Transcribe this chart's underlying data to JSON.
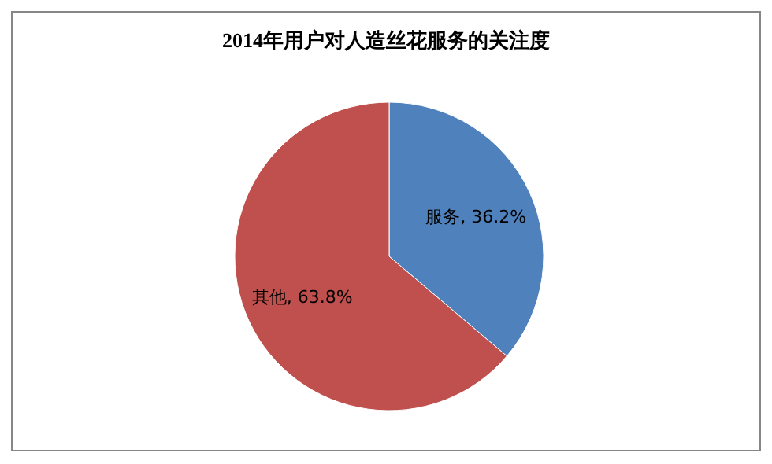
{
  "chart_data": {
    "type": "pie",
    "title": "2014年用户对人造丝花服务的关注度",
    "categories": [
      "服务",
      "其他"
    ],
    "values": [
      36.2,
      63.8
    ],
    "colors": [
      "#4f81bd",
      "#c0504d"
    ],
    "value_labels": [
      ", 36.2%",
      ", 63.8%"
    ]
  }
}
